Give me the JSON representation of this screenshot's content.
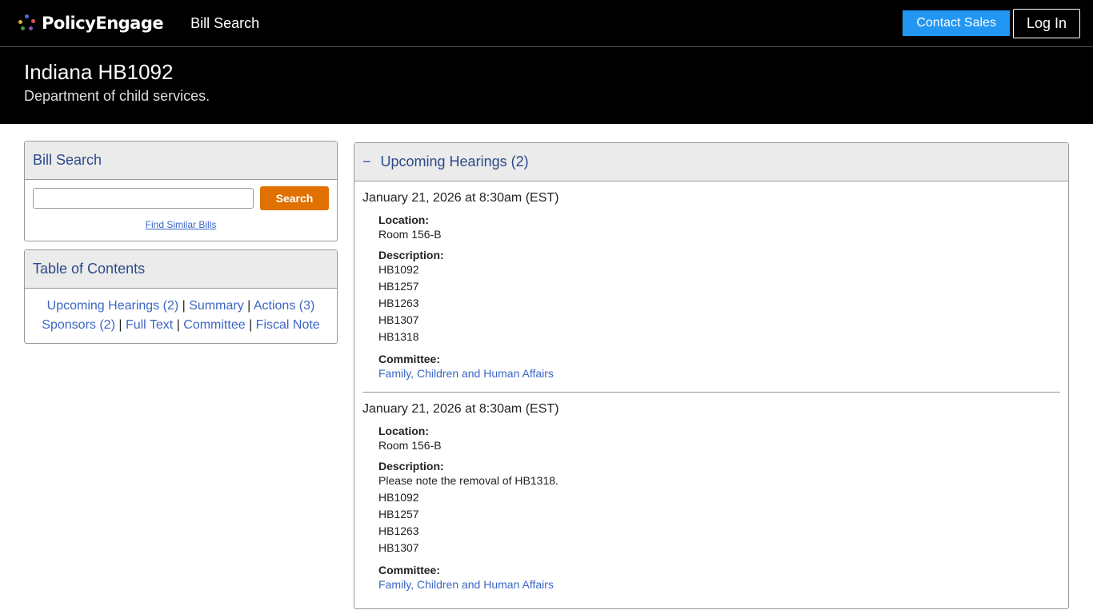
{
  "nav": {
    "brand": "PolicyEngage",
    "bill_search": "Bill Search",
    "contact_sales": "Contact Sales",
    "log_in": "Log In",
    "logo_colors": [
      "#4b6fd6",
      "#d05a5a",
      "#e0b030",
      "#3aa050",
      "#8a4fc0"
    ]
  },
  "hero": {
    "title": "Indiana HB1092",
    "subtitle": "Department of child services."
  },
  "search_panel": {
    "title": "Bill Search",
    "input_value": "",
    "button": "Search",
    "similar": "Find Similar Bills"
  },
  "toc": {
    "title": "Table of Contents",
    "links": [
      "Upcoming Hearings (2)",
      "Summary",
      "Actions (3)",
      "Sponsors (2)",
      "Full Text",
      "Committee",
      "Fiscal Note"
    ]
  },
  "hearings": {
    "toggle": "−",
    "title": "Upcoming Hearings (2)",
    "location_label": "Location:",
    "description_label": "Description:",
    "committee_label": "Committee:",
    "items": [
      {
        "date": "January 21, 2026 at 8:30am (EST)",
        "location": "Room 156-B",
        "description": [
          "HB1092",
          "HB1257",
          "HB1263",
          "HB1307",
          "HB1318"
        ],
        "committee": "Family, Children and Human Affairs"
      },
      {
        "date": "January 21, 2026 at 8:30am (EST)",
        "location": "Room 156-B",
        "description": [
          "Please note the removal of HB1318.",
          "HB1092",
          "HB1257",
          "HB1263",
          "HB1307"
        ],
        "committee": "Family, Children and Human Affairs"
      }
    ]
  }
}
